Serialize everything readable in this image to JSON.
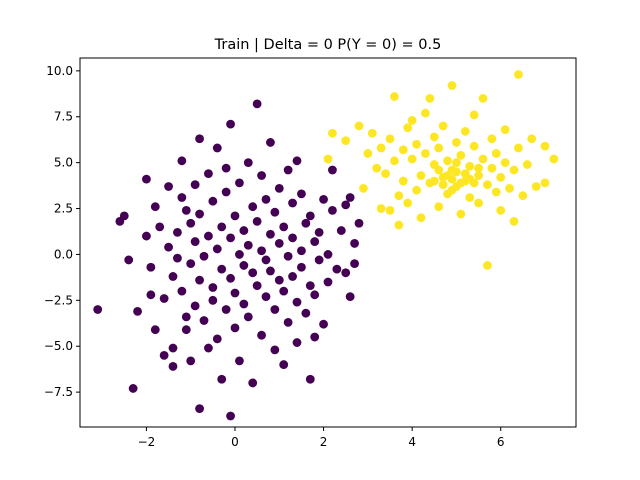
{
  "chart_data": {
    "type": "scatter",
    "title": "Train | Delta = 0 P(Y = 0) = 0.5",
    "xlabel": "",
    "ylabel": "",
    "xlim": [
      -3.5,
      7.7
    ],
    "ylim": [
      -9.4,
      10.7
    ],
    "x_ticks": [
      -2,
      0,
      2,
      4,
      6
    ],
    "x_tick_labels": [
      "−2",
      "0",
      "2",
      "4",
      "6"
    ],
    "y_ticks": [
      -7.5,
      -5.0,
      -2.5,
      0.0,
      2.5,
      5.0,
      7.5,
      10.0
    ],
    "y_tick_labels": [
      "−7.5",
      "−5.0",
      "−2.5",
      "0.0",
      "2.5",
      "5.0",
      "7.5",
      "10.0"
    ],
    "grid": false,
    "legend": "none",
    "colors": {
      "class_0": "#440154",
      "class_1": "#fde725"
    },
    "series": [
      {
        "class": 0,
        "color": "#440154",
        "points": [
          [
            -3.1,
            -3.0
          ],
          [
            -2.5,
            2.1
          ],
          [
            -2.6,
            1.8
          ],
          [
            -2.4,
            -0.3
          ],
          [
            -2.2,
            -3.1
          ],
          [
            -2.3,
            -7.3
          ],
          [
            -2.0,
            4.1
          ],
          [
            -2.0,
            1.0
          ],
          [
            -1.9,
            -0.7
          ],
          [
            -1.9,
            -2.2
          ],
          [
            -1.8,
            -4.1
          ],
          [
            -1.8,
            2.6
          ],
          [
            -1.7,
            1.5
          ],
          [
            -1.6,
            -2.4
          ],
          [
            -1.6,
            -5.5
          ],
          [
            -1.5,
            3.7
          ],
          [
            -1.5,
            0.4
          ],
          [
            -1.4,
            -1.2
          ],
          [
            -1.4,
            -5.1
          ],
          [
            -1.4,
            -6.1
          ],
          [
            -1.3,
            1.2
          ],
          [
            -1.3,
            -0.2
          ],
          [
            -1.2,
            5.1
          ],
          [
            -1.2,
            3.1
          ],
          [
            -1.2,
            -2.0
          ],
          [
            -1.1,
            2.4
          ],
          [
            -1.1,
            -3.4
          ],
          [
            -1.1,
            -4.1
          ],
          [
            -1.0,
            -0.5
          ],
          [
            -1.0,
            1.7
          ],
          [
            -1.0,
            -5.8
          ],
          [
            -0.9,
            3.8
          ],
          [
            -0.9,
            0.7
          ],
          [
            -0.9,
            -2.8
          ],
          [
            -0.8,
            6.3
          ],
          [
            -0.8,
            -1.4
          ],
          [
            -0.8,
            -8.4
          ],
          [
            -0.8,
            2.2
          ],
          [
            -0.7,
            -0.1
          ],
          [
            -0.7,
            -3.6
          ],
          [
            -0.6,
            4.4
          ],
          [
            -0.6,
            1.0
          ],
          [
            -0.6,
            -5.1
          ],
          [
            -0.5,
            2.9
          ],
          [
            -0.5,
            -1.8
          ],
          [
            -0.5,
            -2.5
          ],
          [
            -0.4,
            0.3
          ],
          [
            -0.4,
            -4.6
          ],
          [
            -0.4,
            5.8
          ],
          [
            -0.3,
            -6.8
          ],
          [
            -0.3,
            1.5
          ],
          [
            -0.3,
            -0.8
          ],
          [
            -0.2,
            3.4
          ],
          [
            -0.2,
            -3.0
          ],
          [
            -0.2,
            4.7
          ],
          [
            -0.1,
            -1.3
          ],
          [
            -0.1,
            0.9
          ],
          [
            -0.1,
            7.1
          ],
          [
            -0.1,
            -8.8
          ],
          [
            0.0,
            -2.1
          ],
          [
            0.0,
            2.1
          ],
          [
            0.0,
            -4.0
          ],
          [
            0.1,
            0.0
          ],
          [
            0.1,
            -5.8
          ],
          [
            0.1,
            3.9
          ],
          [
            0.2,
            -0.6
          ],
          [
            0.2,
            1.3
          ],
          [
            0.2,
            -2.7
          ],
          [
            0.3,
            5.0
          ],
          [
            0.3,
            -3.4
          ],
          [
            0.3,
            0.5
          ],
          [
            0.4,
            -1.0
          ],
          [
            0.4,
            2.6
          ],
          [
            0.4,
            -7.0
          ],
          [
            0.5,
            8.2
          ],
          [
            0.5,
            -1.7
          ],
          [
            0.5,
            1.8
          ],
          [
            0.6,
            0.2
          ],
          [
            0.6,
            -4.4
          ],
          [
            0.6,
            4.3
          ],
          [
            0.7,
            -0.3
          ],
          [
            0.7,
            -2.3
          ],
          [
            0.7,
            3.0
          ],
          [
            0.8,
            6.1
          ],
          [
            0.8,
            -0.9
          ],
          [
            0.8,
            1.1
          ],
          [
            0.9,
            -3.0
          ],
          [
            0.9,
            -5.2
          ],
          [
            0.9,
            2.3
          ],
          [
            1.0,
            -1.4
          ],
          [
            1.0,
            0.6
          ],
          [
            1.0,
            3.6
          ],
          [
            1.1,
            -2.0
          ],
          [
            1.1,
            -6.0
          ],
          [
            1.1,
            1.5
          ],
          [
            1.2,
            -0.1
          ],
          [
            1.2,
            4.6
          ],
          [
            1.2,
            -3.7
          ],
          [
            1.3,
            0.9
          ],
          [
            1.3,
            -1.2
          ],
          [
            1.3,
            2.8
          ],
          [
            1.4,
            -2.6
          ],
          [
            1.4,
            -4.8
          ],
          [
            1.4,
            5.1
          ],
          [
            1.5,
            0.2
          ],
          [
            1.5,
            -0.7
          ],
          [
            1.5,
            3.3
          ],
          [
            1.6,
            1.7
          ],
          [
            1.6,
            -3.2
          ],
          [
            1.7,
            -6.8
          ],
          [
            1.7,
            -1.7
          ],
          [
            1.7,
            2.1
          ],
          [
            1.8,
            0.7
          ],
          [
            1.8,
            -2.2
          ],
          [
            1.8,
            -4.5
          ],
          [
            1.9,
            1.2
          ],
          [
            1.9,
            -0.3
          ],
          [
            2.0,
            3.0
          ],
          [
            2.0,
            -3.8
          ],
          [
            2.1,
            0.0
          ],
          [
            2.1,
            -1.5
          ],
          [
            2.2,
            2.4
          ],
          [
            2.2,
            4.6
          ],
          [
            2.3,
            -0.8
          ],
          [
            2.4,
            1.3
          ],
          [
            2.5,
            2.7
          ],
          [
            2.5,
            -1.0
          ],
          [
            2.6,
            3.1
          ],
          [
            2.6,
            -2.3
          ],
          [
            2.7,
            -0.5
          ],
          [
            2.7,
            0.6
          ],
          [
            2.8,
            1.7
          ]
        ]
      },
      {
        "class": 1,
        "color": "#fde725",
        "points": [
          [
            2.1,
            5.2
          ],
          [
            2.2,
            6.6
          ],
          [
            2.5,
            6.2
          ],
          [
            2.8,
            7.0
          ],
          [
            2.9,
            3.6
          ],
          [
            3.0,
            5.5
          ],
          [
            3.1,
            6.6
          ],
          [
            3.2,
            4.7
          ],
          [
            3.3,
            5.8
          ],
          [
            3.3,
            2.5
          ],
          [
            3.4,
            4.4
          ],
          [
            3.5,
            6.3
          ],
          [
            3.5,
            2.4
          ],
          [
            3.6,
            5.1
          ],
          [
            3.6,
            8.6
          ],
          [
            3.7,
            3.2
          ],
          [
            3.7,
            1.6
          ],
          [
            3.8,
            5.7
          ],
          [
            3.8,
            4.0
          ],
          [
            3.9,
            6.9
          ],
          [
            3.9,
            2.8
          ],
          [
            4.0,
            5.2
          ],
          [
            4.0,
            7.3
          ],
          [
            4.1,
            3.5
          ],
          [
            4.1,
            6.0
          ],
          [
            4.2,
            4.3
          ],
          [
            4.2,
            2.0
          ],
          [
            4.3,
            5.5
          ],
          [
            4.3,
            7.7
          ],
          [
            4.4,
            3.9
          ],
          [
            4.4,
            8.5
          ],
          [
            4.5,
            4.9
          ],
          [
            4.5,
            6.4
          ],
          [
            4.6,
            2.6
          ],
          [
            4.6,
            5.8
          ],
          [
            4.7,
            4.2
          ],
          [
            4.7,
            7.0
          ],
          [
            4.8,
            3.3
          ],
          [
            4.8,
            5.1
          ],
          [
            4.9,
            9.2
          ],
          [
            4.9,
            4.6
          ],
          [
            5.0,
            6.1
          ],
          [
            5.0,
            3.7
          ],
          [
            5.1,
            5.4
          ],
          [
            5.1,
            2.2
          ],
          [
            5.2,
            4.0
          ],
          [
            5.2,
            6.7
          ],
          [
            5.3,
            4.8
          ],
          [
            5.3,
            3.1
          ],
          [
            5.4,
            5.9
          ],
          [
            5.4,
            7.6
          ],
          [
            5.5,
            4.3
          ],
          [
            5.5,
            2.8
          ],
          [
            5.6,
            5.2
          ],
          [
            5.6,
            8.5
          ],
          [
            5.7,
            3.8
          ],
          [
            5.7,
            -0.6
          ],
          [
            5.8,
            4.7
          ],
          [
            5.8,
            6.3
          ],
          [
            5.9,
            3.4
          ],
          [
            5.9,
            5.5
          ],
          [
            6.0,
            4.2
          ],
          [
            6.0,
            2.4
          ],
          [
            6.1,
            5.0
          ],
          [
            6.1,
            6.8
          ],
          [
            6.2,
            3.6
          ],
          [
            6.3,
            4.6
          ],
          [
            6.3,
            1.8
          ],
          [
            6.4,
            5.8
          ],
          [
            6.4,
            9.8
          ],
          [
            6.5,
            3.2
          ],
          [
            6.6,
            4.9
          ],
          [
            6.7,
            6.3
          ],
          [
            6.8,
            3.7
          ],
          [
            7.0,
            5.9
          ],
          [
            7.0,
            3.9
          ],
          [
            7.2,
            5.2
          ],
          [
            4.9,
            4.1
          ],
          [
            5.0,
            4.5
          ],
          [
            5.1,
            3.9
          ],
          [
            4.8,
            4.3
          ],
          [
            5.2,
            4.4
          ],
          [
            4.7,
            3.8
          ],
          [
            5.3,
            4.1
          ],
          [
            4.6,
            4.6
          ],
          [
            5.4,
            3.9
          ],
          [
            5.0,
            5.0
          ],
          [
            4.9,
            3.5
          ],
          [
            5.5,
            4.7
          ],
          [
            4.5,
            4.0
          ]
        ]
      }
    ]
  }
}
